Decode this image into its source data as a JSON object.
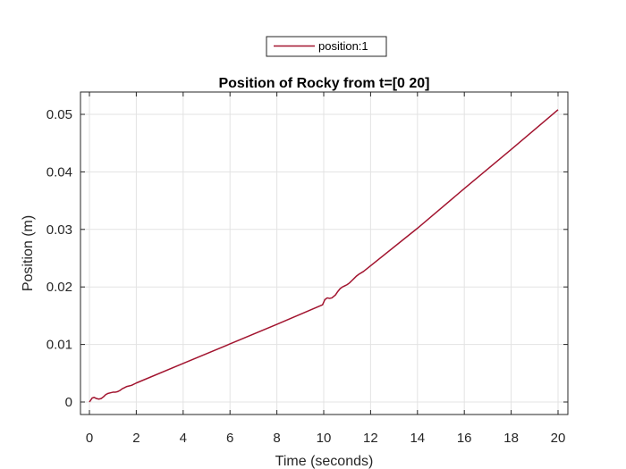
{
  "chart_data": {
    "type": "line",
    "title": "Position of Rocky from t=[0 20]",
    "xlabel": "Time (seconds)",
    "ylabel": "Position (m)",
    "xlim": [
      0,
      20
    ],
    "ylim": [
      -0.0007,
      0.0545
    ],
    "xticks": [
      0,
      2,
      4,
      6,
      8,
      10,
      12,
      14,
      16,
      18,
      20
    ],
    "xtick_labels": [
      "0",
      "2",
      "4",
      "6",
      "8",
      "10",
      "12",
      "14",
      "16",
      "18",
      "20"
    ],
    "yticks": [
      0,
      0.01,
      0.02,
      0.03,
      0.04,
      0.05
    ],
    "ytick_labels": [
      "0",
      "0.01",
      "0.02",
      "0.03",
      "0.04",
      "0.05"
    ],
    "grid": true,
    "legend_position": "top-center",
    "series": [
      {
        "name": "position:1",
        "color": "#a2142f",
        "x": [
          0,
          0.12,
          0.2,
          0.3,
          0.4,
          0.5,
          0.6,
          0.7,
          0.8,
          0.9,
          1.0,
          1.1,
          1.2,
          1.3,
          1.4,
          1.5,
          1.6,
          1.7,
          1.8,
          2.0,
          4.0,
          6.0,
          8.0,
          9.95,
          10.05,
          10.15,
          10.25,
          10.35,
          10.5,
          10.6,
          10.7,
          10.8,
          10.9,
          11.0,
          11.1,
          11.2,
          11.3,
          11.4,
          11.5,
          11.7,
          14.0,
          16.0,
          18.0,
          20.0
        ],
        "y": [
          0,
          0.0007,
          0.0008,
          0.0006,
          0.0005,
          0.0006,
          0.0009,
          0.0013,
          0.0015,
          0.0016,
          0.0017,
          0.0017,
          0.0018,
          0.002,
          0.0023,
          0.0025,
          0.0027,
          0.0028,
          0.0029,
          0.0033,
          0.0067,
          0.0101,
          0.0135,
          0.0169,
          0.0178,
          0.0181,
          0.018,
          0.0181,
          0.0186,
          0.0192,
          0.0197,
          0.02,
          0.0202,
          0.0204,
          0.0207,
          0.0211,
          0.0215,
          0.0219,
          0.0222,
          0.0227,
          0.0302,
          0.0371,
          0.0439,
          0.0508
        ]
      }
    ]
  }
}
